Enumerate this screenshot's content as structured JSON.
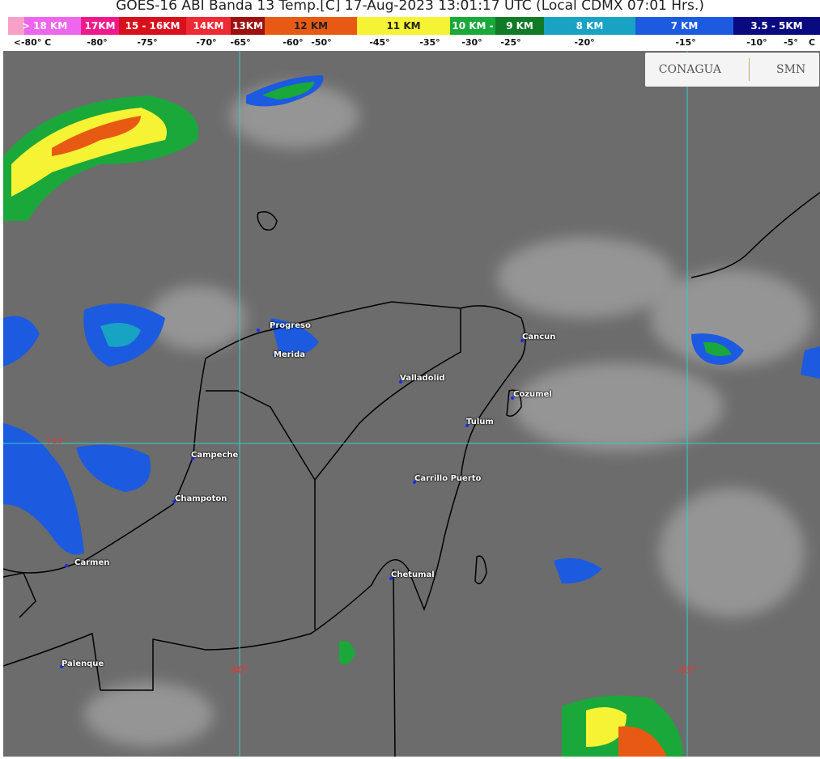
{
  "title": "GOES-16 ABI Banda 13 Temp.[C] 17-Aug-2023 13:01:17 UTC (Local CDMX  07:01 Hrs.)",
  "legend": {
    "bands": [
      {
        "label": "> 18 KM",
        "color": "#ee66ee"
      },
      {
        "label": "17KM",
        "color": "#ee1a8c"
      },
      {
        "label": "15 - 16KM",
        "color": "#d8101c"
      },
      {
        "label": "14KM",
        "color": "#ee2a34"
      },
      {
        "label": "13KM",
        "color": "#9c1010"
      },
      {
        "label": "12 KM",
        "color": "#e85a14"
      },
      {
        "label": "11 KM",
        "color": "#f6f234"
      },
      {
        "label": "10 KM -",
        "color": "#1aa83a"
      },
      {
        "label": "9 KM",
        "color": "#107a26"
      },
      {
        "label": "8 KM",
        "color": "#18a2c4"
      },
      {
        "label": "7 KM",
        "color": "#1c5ae0"
      },
      {
        "label": "3.5 - 5KM",
        "color": "#0a0a80"
      }
    ],
    "temps": [
      "<-80° C",
      "-80°",
      "-75°",
      "-70°",
      "-65°",
      "-60°",
      "-50°",
      "-45°",
      "-35°",
      "-30°",
      "-25°",
      "-20°",
      "-15°",
      "-10°",
      "-5°",
      "C"
    ]
  },
  "logo": {
    "left": "CONAGUA",
    "right": "SMN"
  },
  "cities": [
    "Progreso",
    "Merida",
    "Valladolid",
    "Cancun",
    "Cozumel",
    "Tulum",
    "Campeche",
    "Champoton",
    "Carrillo Puerto",
    "Carmen",
    "Chetumal",
    "Palenque"
  ],
  "grid_labels": {
    "lon1": "-90°",
    "lon2": "-85°",
    "lat": "+20°"
  }
}
